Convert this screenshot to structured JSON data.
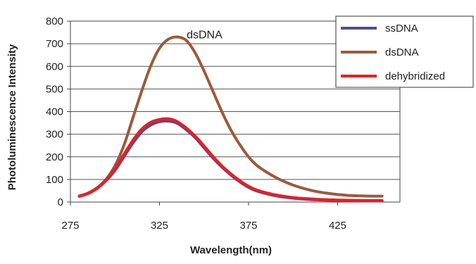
{
  "chart_data": {
    "type": "line",
    "xlabel": "Wavelength(nm)",
    "ylabel": "Photoluminescence Intensity",
    "xlim": [
      275,
      460
    ],
    "ylim": [
      0,
      800
    ],
    "xticks": [
      275,
      325,
      375,
      425
    ],
    "yticks": [
      0,
      100,
      200,
      300,
      400,
      500,
      600,
      700,
      800
    ],
    "grid": "horizontal",
    "legend_position": "top-right",
    "annotations": [
      {
        "text": "dsDNA",
        "x": 340,
        "y": 730
      }
    ],
    "series": [
      {
        "name": "ssDNA",
        "color": "#4b4f8f",
        "x": [
          280,
          285,
          290,
          295,
          300,
          305,
          310,
          315,
          320,
          325,
          330,
          335,
          340,
          345,
          350,
          355,
          360,
          365,
          370,
          375,
          380,
          390,
          400,
          410,
          420,
          430,
          440,
          450
        ],
        "y": [
          25,
          38,
          60,
          95,
          140,
          200,
          260,
          310,
          340,
          355,
          358,
          348,
          320,
          285,
          240,
          195,
          155,
          120,
          90,
          65,
          48,
          28,
          17,
          11,
          8,
          6,
          5,
          5
        ]
      },
      {
        "name": "dsDNA",
        "color": "#9c5a3c",
        "x": [
          280,
          285,
          290,
          295,
          300,
          305,
          310,
          315,
          320,
          325,
          330,
          335,
          340,
          345,
          350,
          355,
          360,
          365,
          370,
          375,
          380,
          390,
          400,
          410,
          420,
          430,
          440,
          450
        ],
        "y": [
          25,
          38,
          62,
          100,
          160,
          250,
          370,
          490,
          600,
          680,
          720,
          730,
          715,
          660,
          580,
          490,
          400,
          320,
          255,
          200,
          160,
          110,
          75,
          52,
          38,
          30,
          27,
          26
        ]
      },
      {
        "name": "dehybridized",
        "color": "#ee1c24",
        "x": [
          280,
          285,
          290,
          295,
          300,
          305,
          310,
          315,
          320,
          325,
          330,
          335,
          340,
          345,
          350,
          355,
          360,
          365,
          370,
          375,
          380,
          390,
          400,
          410,
          420,
          430,
          440,
          450
        ],
        "y": [
          27,
          40,
          63,
          100,
          148,
          210,
          272,
          322,
          352,
          365,
          368,
          356,
          328,
          292,
          248,
          202,
          160,
          125,
          95,
          70,
          52,
          32,
          20,
          14,
          10,
          8,
          7,
          7
        ]
      }
    ]
  }
}
